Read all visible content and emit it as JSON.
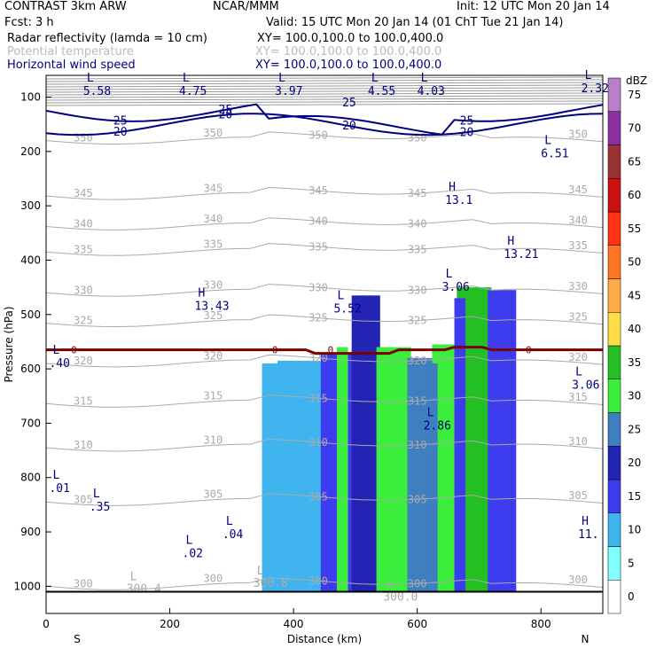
{
  "header": {
    "left1": "CONTRAST  3km ARW",
    "center1": "NCAR/MMM",
    "right1": "Init: 12 UTC Mon 20 Jan 14",
    "left2": "Fcst:     3 h",
    "right2": "Valid: 15 UTC Mon 20 Jan 14 (01 ChT Tue 21 Jan 14)",
    "fields": [
      {
        "name": "Radar reflectivity (lamda = 10 cm)",
        "xy": "XY= 100.0,100.0 to 100.0,400.0",
        "color": "#000000"
      },
      {
        "name": "Potential temperature",
        "xy": "XY= 100.0,100.0 to 100.0,400.0",
        "color": "#bbbbbb"
      },
      {
        "name": "Horizontal wind speed",
        "xy": "XY= 100.0,100.0 to 100.0,400.0",
        "color": "#000080"
      }
    ]
  },
  "chart_data": {
    "type": "heatmap",
    "xlabel": "Distance (km)",
    "ylabel": "Pressure (hPa)",
    "xlim": [
      0,
      900
    ],
    "ylim": [
      1050,
      60
    ],
    "x_ticks": [
      "0",
      "200",
      "400",
      "600",
      "800"
    ],
    "y_ticks": [
      "100",
      "200",
      "300",
      "400",
      "500",
      "600",
      "700",
      "800",
      "900",
      "1000"
    ],
    "x_end_labels": {
      "left": "S",
      "right": "N"
    },
    "colorbar": {
      "unit": "dBZ",
      "levels": [
        "0",
        "5",
        "10",
        "15",
        "20",
        "25",
        "30",
        "35",
        "40",
        "45",
        "50",
        "55",
        "60",
        "65",
        "70",
        "75"
      ],
      "colors": [
        "#ffffff",
        "#7fffff",
        "#3fb4ee",
        "#3c3cee",
        "#2323b4",
        "#3f7fbf",
        "#3cee3c",
        "#23bf23",
        "#ffdd44",
        "#ffaa44",
        "#ff7722",
        "#ff3311",
        "#cc1111",
        "#993333",
        "#8a2ea0",
        "#b97fc9"
      ]
    },
    "reflectivity_columns": [
      {
        "x": 355,
        "top": 590,
        "bottom": 1010,
        "dbz": 10
      },
      {
        "x": 380,
        "top": 585,
        "bottom": 1010,
        "dbz": 10
      },
      {
        "x": 450,
        "top": 570,
        "bottom": 1010,
        "dbz": 15
      },
      {
        "x": 500,
        "top": 465,
        "bottom": 1010,
        "dbz": 20
      },
      {
        "x": 540,
        "top": 560,
        "bottom": 1010,
        "dbz": 30
      },
      {
        "x": 590,
        "top": 580,
        "bottom": 1010,
        "dbz": 25
      },
      {
        "x": 630,
        "top": 555,
        "bottom": 1010,
        "dbz": 30
      },
      {
        "x": 670,
        "top": 450,
        "bottom": 1010,
        "dbz": 35
      },
      {
        "x": 720,
        "top": 455,
        "bottom": 1010,
        "dbz": 15
      }
    ],
    "theta_contours": [
      {
        "value": 350,
        "p": 180
      },
      {
        "value": 345,
        "p": 282
      },
      {
        "value": 340,
        "p": 338
      },
      {
        "value": 335,
        "p": 385
      },
      {
        "value": 330,
        "p": 460
      },
      {
        "value": 325,
        "p": 516
      },
      {
        "value": 320,
        "p": 590
      },
      {
        "value": 315,
        "p": 664
      },
      {
        "value": 310,
        "p": 745
      },
      {
        "value": 305,
        "p": 845
      },
      {
        "value": 300,
        "p": 1000
      }
    ],
    "wind_contours": [
      {
        "value": 25,
        "p": 125
      },
      {
        "value": 20,
        "p": 150
      }
    ],
    "zero_isotherm_p": 565,
    "wind_extrema": [
      {
        "type": "L",
        "value": "5.58",
        "x": 60,
        "p": 75
      },
      {
        "type": "L",
        "value": "4.75",
        "x": 215,
        "p": 75
      },
      {
        "type": "L",
        "value": "3.97",
        "x": 370,
        "p": 75
      },
      {
        "type": "L",
        "value": "4.55",
        "x": 520,
        "p": 75
      },
      {
        "type": "L",
        "value": "4.03",
        "x": 600,
        "p": 75
      },
      {
        "type": "L",
        "value": "2.32",
        "x": 865,
        "p": 70
      },
      {
        "type": "L",
        "value": "6.51",
        "x": 800,
        "p": 190
      },
      {
        "type": "H",
        "value": "13.1",
        "x": 645,
        "p": 275
      },
      {
        "type": "H",
        "value": "13.21",
        "x": 740,
        "p": 375
      },
      {
        "type": "L",
        "value": "3.06",
        "x": 640,
        "p": 435
      },
      {
        "type": "H",
        "value": "13.43",
        "x": 240,
        "p": 470
      },
      {
        "type": "L",
        "value": "5.52",
        "x": 465,
        "p": 475
      },
      {
        "type": "L",
        "value": ".40",
        "x": 5,
        "p": 575
      },
      {
        "type": "L",
        "value": "3.06",
        "x": 850,
        "p": 615
      },
      {
        "type": "L",
        "value": "2.86",
        "x": 610,
        "p": 690
      },
      {
        "type": "L",
        "value": ".01",
        "x": 5,
        "p": 805
      },
      {
        "type": "L",
        "value": ".35",
        "x": 70,
        "p": 840
      },
      {
        "type": "L",
        "value": ".04",
        "x": 285,
        "p": 890
      },
      {
        "type": "L",
        "value": ".02",
        "x": 220,
        "p": 925
      },
      {
        "type": "H",
        "value": "11.",
        "x": 860,
        "p": 890
      }
    ],
    "theta_extrema": [
      {
        "type": "L",
        "value": "300.4",
        "x": 130,
        "p": 995
      },
      {
        "type": "L",
        "value": "300.8",
        "x": 335,
        "p": 985
      },
      {
        "type": "L",
        "value": "300.0",
        "x": 545,
        "p": 1010
      }
    ]
  }
}
